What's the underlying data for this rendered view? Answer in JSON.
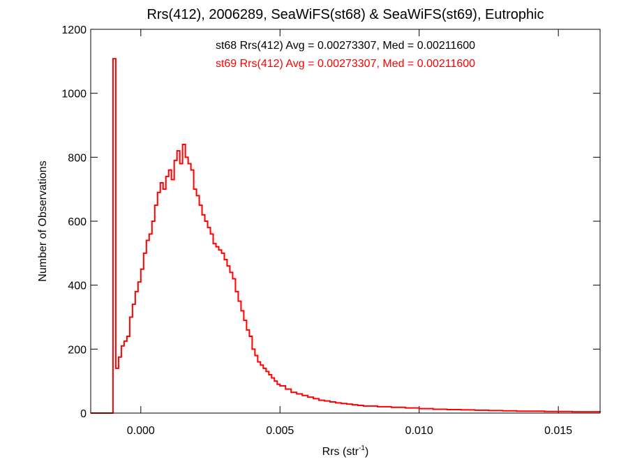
{
  "chart_data": {
    "type": "histogram",
    "title": "Rrs(412), 2006289, SeaWiFS(st68) & SeaWiFS(st69), Eutrophic",
    "xlabel_main": "Rrs (str",
    "xlabel_sup": "-1",
    "xlabel_close": ")",
    "ylabel": "Number of Observations",
    "xlim": [
      -0.0018,
      0.0165
    ],
    "ylim": [
      0,
      1200
    ],
    "x_ticks": [
      0.0,
      0.005,
      0.01,
      0.015
    ],
    "x_tick_labels": [
      "0.000",
      "0.005",
      "0.010",
      "0.015"
    ],
    "y_ticks": [
      0,
      200,
      400,
      600,
      800,
      1000,
      1200
    ],
    "y_tick_labels": [
      "0",
      "200",
      "400",
      "600",
      "800",
      "1000",
      "1200"
    ],
    "annotations": [
      {
        "text": "st68 Rrs(412) Avg = 0.00273307, Med = 0.00211600",
        "color": "#000000"
      },
      {
        "text": "st69 Rrs(412) Avg = 0.00273307, Med = 0.00211600",
        "color": "#ff0000"
      }
    ],
    "series": [
      {
        "color": "#ff0000",
        "x": [
          -0.0018,
          -0.001,
          -0.0009,
          -0.0008,
          -0.0007,
          -0.0006,
          -0.0005,
          -0.0004,
          -0.0003,
          -0.0002,
          -0.0001,
          0.0,
          0.0001,
          0.0002,
          0.0003,
          0.0004,
          0.0005,
          0.0006,
          0.0007,
          0.0008,
          0.0009,
          0.001,
          0.0011,
          0.0012,
          0.0013,
          0.0014,
          0.0015,
          0.0016,
          0.0017,
          0.0018,
          0.0019,
          0.002,
          0.0021,
          0.0022,
          0.0023,
          0.0024,
          0.0025,
          0.0026,
          0.0027,
          0.0028,
          0.0029,
          0.003,
          0.0031,
          0.0032,
          0.0033,
          0.0034,
          0.0035,
          0.0036,
          0.0037,
          0.0038,
          0.0039,
          0.004,
          0.0041,
          0.0042,
          0.0043,
          0.0044,
          0.0045,
          0.0046,
          0.0047,
          0.0048,
          0.0049,
          0.005,
          0.0052,
          0.0054,
          0.0056,
          0.0058,
          0.006,
          0.0062,
          0.0064,
          0.0066,
          0.0068,
          0.007,
          0.0072,
          0.0074,
          0.0076,
          0.0078,
          0.008,
          0.0085,
          0.009,
          0.0095,
          0.01,
          0.0105,
          0.011,
          0.0115,
          0.012,
          0.0125,
          0.013,
          0.0135,
          0.014,
          0.0145,
          0.015,
          0.0155,
          0.016,
          0.0165
        ],
        "y": [
          0,
          1108,
          140,
          175,
          210,
          225,
          240,
          300,
          340,
          380,
          410,
          450,
          500,
          540,
          560,
          600,
          650,
          690,
          720,
          700,
          740,
          760,
          730,
          790,
          820,
          780,
          840,
          800,
          780,
          760,
          700,
          680,
          650,
          620,
          600,
          580,
          560,
          530,
          520,
          510,
          500,
          480,
          460,
          440,
          420,
          380,
          350,
          320,
          290,
          260,
          240,
          200,
          180,
          160,
          150,
          140,
          130,
          120,
          110,
          100,
          90,
          85,
          75,
          65,
          60,
          55,
          50,
          45,
          40,
          38,
          35,
          32,
          30,
          28,
          26,
          24,
          22,
          20,
          18,
          16,
          14,
          12,
          11,
          10,
          9,
          8,
          7,
          6,
          6,
          5,
          5,
          4,
          4,
          3
        ]
      }
    ]
  }
}
